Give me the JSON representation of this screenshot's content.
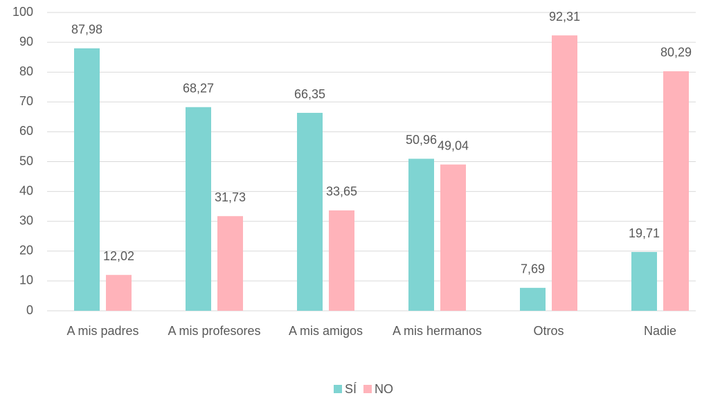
{
  "chart_data": {
    "type": "bar",
    "categories": [
      "A mis padres",
      "A mis profesores",
      "A mis amigos",
      "A mis hermanos",
      "Otros",
      "Nadie"
    ],
    "series": [
      {
        "name": "SÍ",
        "color": "#7fd4d2",
        "values": [
          87.98,
          68.27,
          66.35,
          50.96,
          7.69,
          19.71
        ],
        "value_labels": [
          "87,98",
          "68,27",
          "66,35",
          "50,96",
          "7,69",
          "19,71"
        ]
      },
      {
        "name": "NO",
        "color": "#ffb3ba",
        "values": [
          12.02,
          31.73,
          33.65,
          49.04,
          92.31,
          80.29
        ],
        "value_labels": [
          "12,02",
          "31,73",
          "33,65",
          "49,04",
          "92,31",
          "80,29"
        ]
      }
    ],
    "ylim": [
      0,
      100
    ],
    "yticks": [
      0,
      10,
      20,
      30,
      40,
      50,
      60,
      70,
      80,
      90,
      100
    ],
    "grid": true,
    "legend": "bottom"
  }
}
